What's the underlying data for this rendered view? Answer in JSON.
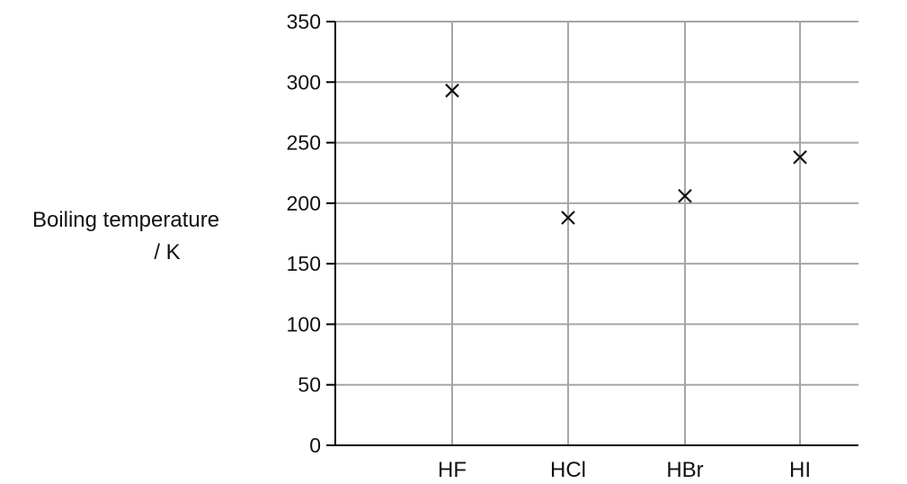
{
  "chart_data": {
    "type": "scatter",
    "title": "",
    "xlabel": "",
    "ylabel": [
      "Boiling temperature",
      "/ K"
    ],
    "categories": [
      "HF",
      "HCl",
      "HBr",
      "HI"
    ],
    "values": [
      293,
      188,
      206,
      238
    ],
    "ylim": [
      0,
      350
    ],
    "yticks": [
      0,
      50,
      100,
      150,
      200,
      250,
      300,
      350
    ],
    "marker": "x",
    "grid": true,
    "colors": {
      "grid": "#a6a6a6",
      "axis": "#000000",
      "marker": "#111111"
    }
  }
}
